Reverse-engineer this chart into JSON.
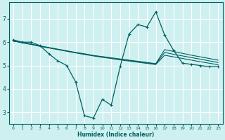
{
  "xlabel": "Humidex (Indice chaleur)",
  "ylabel": "",
  "xlim": [
    -0.5,
    23.5
  ],
  "ylim": [
    2.5,
    7.7
  ],
  "yticks": [
    3,
    4,
    5,
    6,
    7
  ],
  "xticks": [
    0,
    1,
    2,
    3,
    4,
    5,
    6,
    7,
    8,
    9,
    10,
    11,
    12,
    13,
    14,
    15,
    16,
    17,
    18,
    19,
    20,
    21,
    22,
    23
  ],
  "bg_color": "#cff0f0",
  "line_color": "#006060",
  "grid_color": "#ffffff",
  "wavy_line": [
    6.1,
    6.0,
    6.0,
    5.85,
    5.5,
    5.2,
    5.0,
    4.3,
    2.85,
    2.75,
    3.55,
    3.3,
    4.95,
    6.35,
    6.75,
    6.65,
    7.3,
    6.3,
    5.65,
    5.1,
    5.05,
    5.0,
    4.95,
    4.95
  ],
  "line1": [
    6.05,
    6.0,
    5.92,
    5.84,
    5.77,
    5.7,
    5.63,
    5.56,
    5.5,
    5.43,
    5.38,
    5.33,
    5.28,
    5.23,
    5.18,
    5.13,
    5.08,
    5.68,
    5.6,
    5.52,
    5.44,
    5.37,
    5.3,
    5.23
  ],
  "line2": [
    6.05,
    5.98,
    5.91,
    5.83,
    5.76,
    5.69,
    5.62,
    5.55,
    5.49,
    5.42,
    5.37,
    5.31,
    5.26,
    5.21,
    5.16,
    5.11,
    5.06,
    5.56,
    5.48,
    5.41,
    5.34,
    5.27,
    5.2,
    5.13
  ],
  "line3": [
    6.05,
    5.97,
    5.9,
    5.82,
    5.75,
    5.68,
    5.61,
    5.54,
    5.47,
    5.41,
    5.35,
    5.3,
    5.24,
    5.19,
    5.14,
    5.09,
    5.04,
    5.44,
    5.37,
    5.3,
    5.23,
    5.16,
    5.1,
    5.03
  ]
}
